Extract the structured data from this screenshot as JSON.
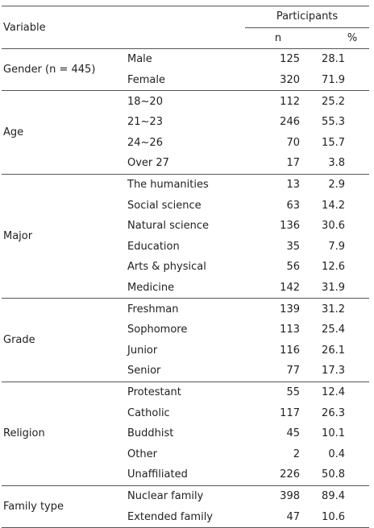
{
  "header": {
    "variable": "Variable",
    "participants": "Participants",
    "n": "n",
    "percent": "%"
  },
  "groups": [
    {
      "label": "Gender (n = 445)",
      "rows": [
        [
          "Male",
          125,
          28.1
        ],
        [
          "Female",
          320,
          71.9
        ]
      ]
    },
    {
      "label": "Age",
      "rows": [
        [
          "18~20",
          112,
          25.2
        ],
        [
          "21~23",
          246,
          55.3
        ],
        [
          "24~26",
          70,
          15.7
        ],
        [
          "Over 27",
          17,
          3.8
        ]
      ]
    },
    {
      "label": "Major",
      "rows": [
        [
          "The humanities",
          13,
          2.9
        ],
        [
          "Social science",
          63,
          14.2
        ],
        [
          "Natural science",
          136,
          30.6
        ],
        [
          "Education",
          35,
          7.9
        ],
        [
          "Arts & physical",
          56,
          12.6
        ],
        [
          "Medicine",
          142,
          31.9
        ]
      ]
    },
    {
      "label": "Grade",
      "rows": [
        [
          "Freshman",
          139,
          31.2
        ],
        [
          "Sophomore",
          113,
          25.4
        ],
        [
          "Junior",
          116,
          26.1
        ],
        [
          "Senior",
          77,
          17.3
        ]
      ]
    },
    {
      "label": "Religion",
      "rows": [
        [
          "Protestant",
          55,
          12.4
        ],
        [
          "Catholic",
          117,
          26.3
        ],
        [
          "Buddhist",
          45,
          10.1
        ],
        [
          "Other",
          2,
          0.4
        ],
        [
          "Unaffiliated",
          226,
          50.8
        ]
      ]
    },
    {
      "label": "Family type",
      "rows": [
        [
          "Nuclear family",
          398,
          89.4
        ],
        [
          "Extended family",
          47,
          10.6
        ]
      ]
    }
  ]
}
